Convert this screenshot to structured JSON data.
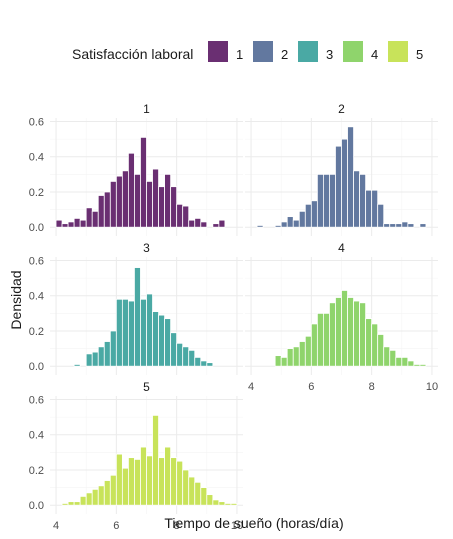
{
  "chart_data": {
    "type": "bar",
    "xlabel": "Tiempo de sueño (horas/día)",
    "ylabel": "Densidad",
    "legend": {
      "title": "Satisfacción laboral",
      "position": "top",
      "entries": [
        {
          "label": "1",
          "color": "#6a2f72"
        },
        {
          "label": "2",
          "color": "#62789f"
        },
        {
          "label": "3",
          "color": "#4aa9a4"
        },
        {
          "label": "4",
          "color": "#8fd46c"
        },
        {
          "label": "5",
          "color": "#c8e35a"
        }
      ]
    },
    "xlim": [
      3.8,
      10.2
    ],
    "ylim": [
      -0.05,
      0.62
    ],
    "x_ticks": [
      4,
      6,
      8,
      10
    ],
    "x_tick_labels": [
      "4",
      "6",
      "8",
      "10"
    ],
    "y_ticks": [
      0,
      0.2,
      0.4,
      0.6
    ],
    "y_tick_labels": [
      "0.0",
      "0.2",
      "0.4",
      "0.6"
    ],
    "grid": true,
    "bin_width": 0.2,
    "panels": [
      {
        "title": "1",
        "color": "#6a2f72",
        "bins": [
          [
            4.1,
            0.04
          ],
          [
            4.3,
            0.02
          ],
          [
            4.5,
            0.03
          ],
          [
            4.7,
            0.05
          ],
          [
            4.9,
            0.04
          ],
          [
            5.1,
            0.11
          ],
          [
            5.3,
            0.09
          ],
          [
            5.5,
            0.18
          ],
          [
            5.7,
            0.2
          ],
          [
            5.9,
            0.26
          ],
          [
            6.1,
            0.29
          ],
          [
            6.3,
            0.32
          ],
          [
            6.5,
            0.42
          ],
          [
            6.7,
            0.3
          ],
          [
            6.9,
            0.51
          ],
          [
            7.1,
            0.26
          ],
          [
            7.3,
            0.33
          ],
          [
            7.5,
            0.23
          ],
          [
            7.7,
            0.3
          ],
          [
            7.9,
            0.23
          ],
          [
            8.1,
            0.13
          ],
          [
            8.3,
            0.12
          ],
          [
            8.5,
            0.04
          ],
          [
            8.7,
            0.05
          ],
          [
            8.9,
            0.03
          ],
          [
            9.3,
            0.02
          ],
          [
            9.5,
            0.04
          ]
        ]
      },
      {
        "title": "2",
        "color": "#62789f",
        "bins": [
          [
            4.3,
            0.01
          ],
          [
            4.9,
            0.01
          ],
          [
            5.1,
            0.03
          ],
          [
            5.3,
            0.06
          ],
          [
            5.5,
            0.04
          ],
          [
            5.7,
            0.09
          ],
          [
            5.9,
            0.13
          ],
          [
            6.1,
            0.15
          ],
          [
            6.3,
            0.3
          ],
          [
            6.5,
            0.3
          ],
          [
            6.7,
            0.3
          ],
          [
            6.9,
            0.46
          ],
          [
            7.1,
            0.5
          ],
          [
            7.3,
            0.57
          ],
          [
            7.5,
            0.32
          ],
          [
            7.7,
            0.3
          ],
          [
            7.9,
            0.21
          ],
          [
            8.1,
            0.21
          ],
          [
            8.3,
            0.13
          ],
          [
            8.5,
            0.02
          ],
          [
            8.7,
            0.02
          ],
          [
            8.9,
            0.02
          ],
          [
            9.1,
            0.03
          ],
          [
            9.3,
            0.02
          ],
          [
            9.7,
            0.02
          ]
        ]
      },
      {
        "title": "3",
        "color": "#4aa9a4",
        "bins": [
          [
            4.7,
            0.01
          ],
          [
            5.1,
            0.07
          ],
          [
            5.3,
            0.08
          ],
          [
            5.5,
            0.11
          ],
          [
            5.7,
            0.14
          ],
          [
            5.9,
            0.2
          ],
          [
            6.1,
            0.38
          ],
          [
            6.3,
            0.38
          ],
          [
            6.5,
            0.37
          ],
          [
            6.7,
            0.56
          ],
          [
            6.9,
            0.38
          ],
          [
            7.1,
            0.41
          ],
          [
            7.3,
            0.31
          ],
          [
            7.5,
            0.29
          ],
          [
            7.7,
            0.27
          ],
          [
            7.9,
            0.19
          ],
          [
            8.1,
            0.13
          ],
          [
            8.3,
            0.11
          ],
          [
            8.5,
            0.09
          ],
          [
            8.7,
            0.05
          ],
          [
            8.9,
            0.03
          ],
          [
            9.1,
            0.02
          ]
        ]
      },
      {
        "title": "4",
        "color": "#8fd46c",
        "bins": [
          [
            4.9,
            0.06
          ],
          [
            5.1,
            0.05
          ],
          [
            5.3,
            0.1
          ],
          [
            5.5,
            0.11
          ],
          [
            5.7,
            0.14
          ],
          [
            5.9,
            0.17
          ],
          [
            6.1,
            0.24
          ],
          [
            6.3,
            0.3
          ],
          [
            6.5,
            0.3
          ],
          [
            6.7,
            0.36
          ],
          [
            6.9,
            0.39
          ],
          [
            7.1,
            0.43
          ],
          [
            7.3,
            0.39
          ],
          [
            7.5,
            0.37
          ],
          [
            7.7,
            0.36
          ],
          [
            7.9,
            0.27
          ],
          [
            8.1,
            0.24
          ],
          [
            8.3,
            0.18
          ],
          [
            8.5,
            0.11
          ],
          [
            8.7,
            0.09
          ],
          [
            8.9,
            0.05
          ],
          [
            9.1,
            0.05
          ],
          [
            9.3,
            0.03
          ],
          [
            9.5,
            0.01
          ],
          [
            9.7,
            0.01
          ]
        ]
      },
      {
        "title": "5",
        "color": "#c8e35a",
        "bins": [
          [
            4.3,
            0.01
          ],
          [
            4.5,
            0.02
          ],
          [
            4.7,
            0.02
          ],
          [
            4.9,
            0.05
          ],
          [
            5.1,
            0.07
          ],
          [
            5.3,
            0.09
          ],
          [
            5.5,
            0.11
          ],
          [
            5.7,
            0.14
          ],
          [
            5.9,
            0.17
          ],
          [
            6.1,
            0.29
          ],
          [
            6.3,
            0.21
          ],
          [
            6.5,
            0.27
          ],
          [
            6.7,
            0.26
          ],
          [
            6.9,
            0.33
          ],
          [
            7.1,
            0.28
          ],
          [
            7.3,
            0.51
          ],
          [
            7.5,
            0.27
          ],
          [
            7.7,
            0.33
          ],
          [
            7.9,
            0.27
          ],
          [
            8.1,
            0.25
          ],
          [
            8.3,
            0.2
          ],
          [
            8.5,
            0.16
          ],
          [
            8.7,
            0.13
          ],
          [
            8.9,
            0.1
          ],
          [
            9.1,
            0.06
          ],
          [
            9.3,
            0.03
          ],
          [
            9.5,
            0.02
          ],
          [
            9.7,
            0.01
          ],
          [
            9.9,
            0.01
          ]
        ]
      }
    ]
  }
}
